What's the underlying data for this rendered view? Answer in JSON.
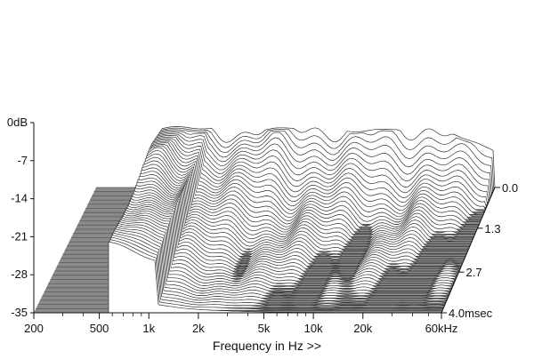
{
  "chart_data": {
    "type": "area",
    "title": "",
    "xlabel": "Frequency in Hz >>",
    "ylabel": "",
    "zlabel": "",
    "x_ticks": [
      "200",
      "500",
      "1k",
      "2k",
      "5k",
      "10k",
      "20k",
      "60kHz"
    ],
    "x_tick_values": [
      200,
      500,
      1000,
      2000,
      5000,
      10000,
      20000,
      60000
    ],
    "y_ticks": [
      "0dB",
      "-7",
      "-14",
      "-21",
      "-28",
      "-35"
    ],
    "y_tick_values": [
      0,
      -7,
      -14,
      -21,
      -28,
      -35
    ],
    "ylim": [
      -35,
      0
    ],
    "z_ticks": [
      "0.0",
      "1.3",
      "2.7",
      "4.0msec"
    ],
    "z_tick_values": [
      0.0,
      1.3,
      2.7,
      4.0
    ],
    "zlim": [
      0.0,
      4.0
    ],
    "xscale": "log",
    "slice_count": 52,
    "description_type": "cumulative spectral decay waterfall"
  }
}
